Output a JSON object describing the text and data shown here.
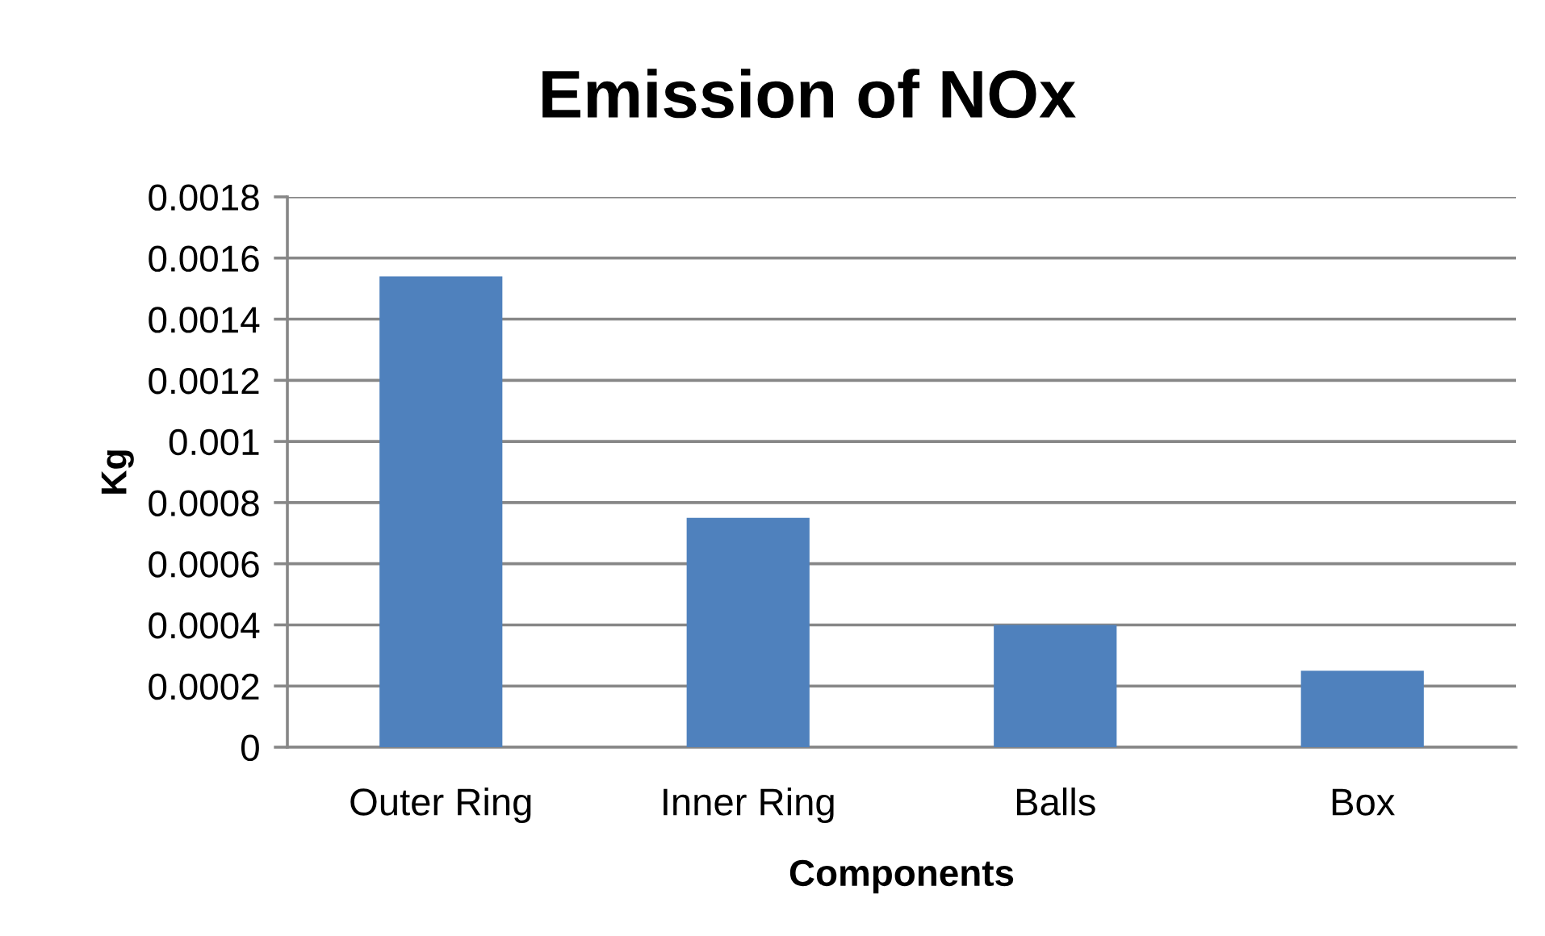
{
  "chart_data": {
    "type": "bar",
    "title": "Emission of NOx",
    "xlabel": "Components",
    "ylabel": "Kg",
    "categories": [
      "Outer Ring",
      "Inner Ring",
      "Balls",
      "Box"
    ],
    "values": [
      0.00154,
      0.00075,
      0.0004,
      0.00025
    ],
    "color": "#4f81bd",
    "ylim": [
      0,
      0.0018
    ],
    "yticks": [
      0,
      0.0002,
      0.0004,
      0.0006,
      0.0008,
      0.001,
      0.0012,
      0.0014,
      0.0016,
      0.0018
    ],
    "grid": "y",
    "legend": false
  }
}
